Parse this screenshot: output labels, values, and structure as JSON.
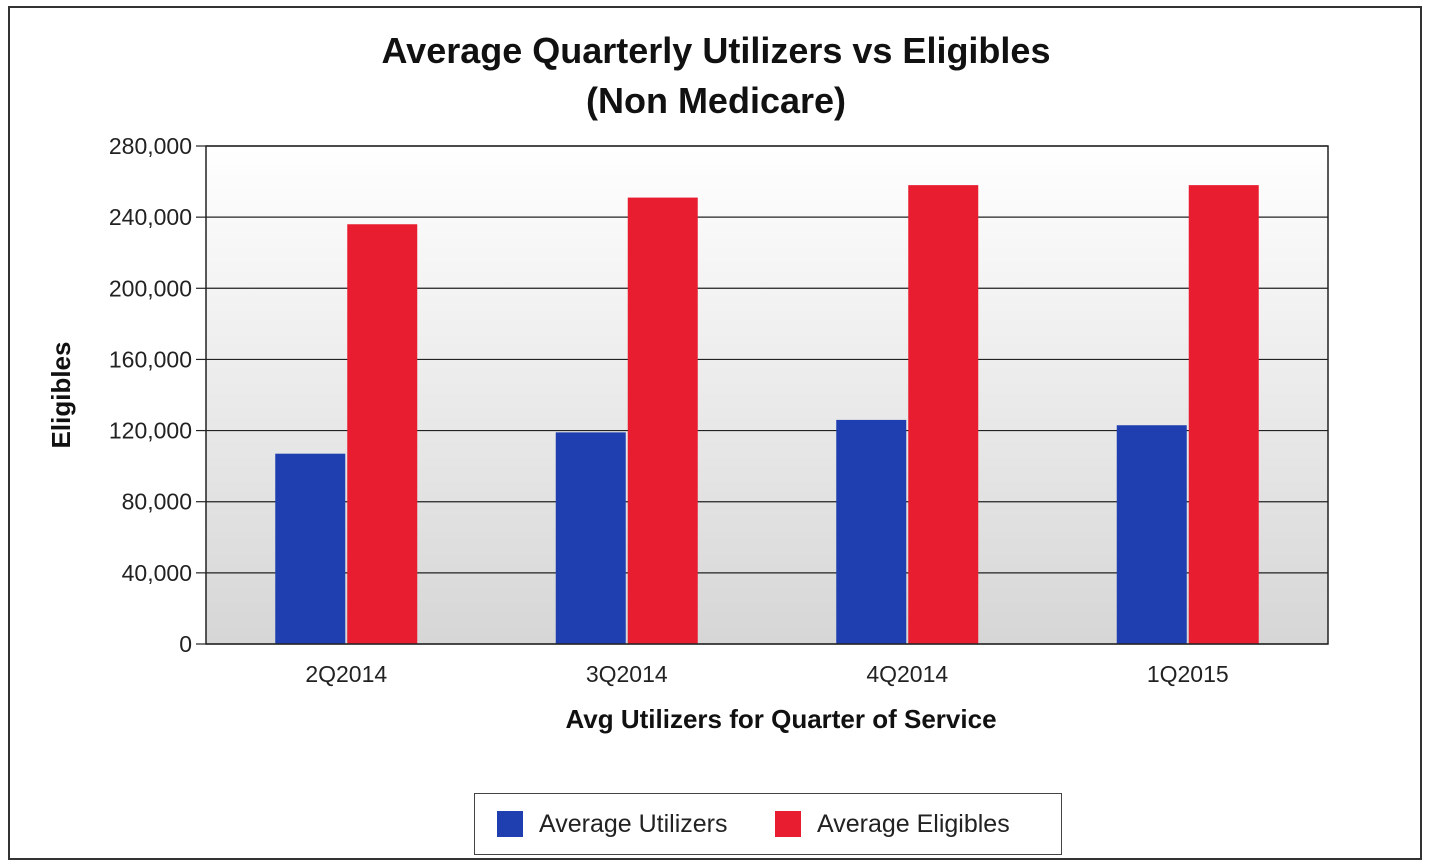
{
  "chart_data": {
    "type": "bar",
    "title": "Average Quarterly Utilizers vs Eligibles",
    "subtitle": "(Non Medicare)",
    "xlabel": "Avg Utilizers for Quarter of Service",
    "ylabel": "Eligibles",
    "categories": [
      "2Q2014",
      "3Q2014",
      "4Q2014",
      "1Q2015"
    ],
    "series": [
      {
        "name": "Average Utilizers",
        "color": "#1f3fb0",
        "values": [
          107000,
          119000,
          126000,
          123000
        ]
      },
      {
        "name": "Average Eligibles",
        "color": "#e81e30",
        "values": [
          236000,
          251000,
          258000,
          258000
        ]
      }
    ],
    "ylim": [
      0,
      280000
    ],
    "yticks": [
      0,
      40000,
      80000,
      120000,
      160000,
      200000,
      240000,
      280000
    ],
    "ytick_labels": [
      "0",
      "40,000",
      "80,000",
      "120,000",
      "160,000",
      "200,000",
      "240,000",
      "280,000"
    ],
    "grid": true,
    "legend_position": "bottom-center"
  }
}
